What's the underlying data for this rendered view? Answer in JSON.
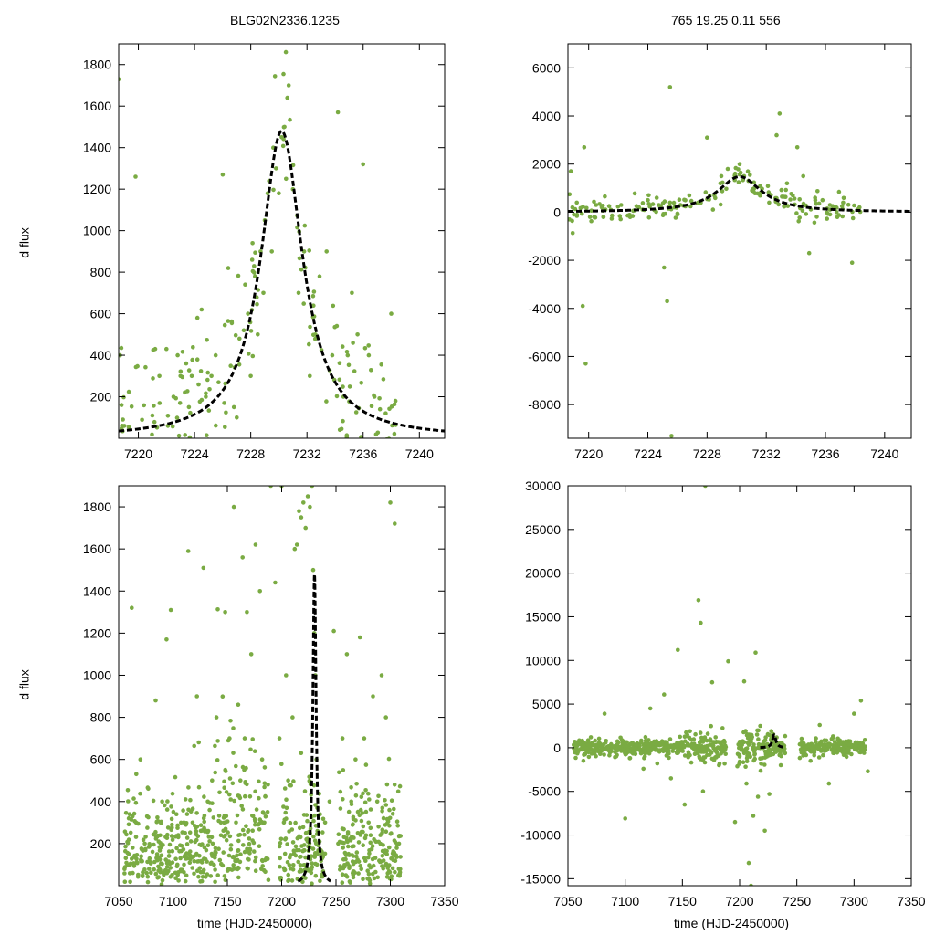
{
  "figure": {
    "title_left": "BLG02N2336.1235",
    "title_right": "765  19.25  0.11  556",
    "point_color": "#7aab43",
    "model_color": "#000000"
  },
  "chart_data": [
    {
      "id": "top-left",
      "type": "scatter",
      "title": "BLG02N2336.1235",
      "xlabel": "",
      "ylabel": "d flux",
      "xlim": [
        7218.6,
        7241.8
      ],
      "ylim": [
        0,
        1900
      ],
      "xticks": [
        7220,
        7224,
        7228,
        7232,
        7236,
        7240
      ],
      "yticks": [
        200,
        400,
        600,
        800,
        1000,
        1200,
        1400,
        1600,
        1800
      ],
      "series": [
        {
          "name": "photometry",
          "style": "points",
          "x": [
            7218.6,
            7218.7,
            7218.8,
            7218.9,
            7219.0,
            7219.8,
            7221.0,
            7221.2,
            7221.5,
            7222.0,
            7222.1,
            7222.5,
            7222.8,
            7223.0,
            7223.4,
            7223.6,
            7223.8,
            7224.2,
            7224.5,
            7224.8,
            7225.2,
            7225.5,
            7226.0,
            7226.4,
            7226.8,
            7227.0,
            7227.2,
            7227.5,
            7227.6,
            7227.8,
            7228.0,
            7228.1,
            7228.3,
            7228.5,
            7228.7,
            7228.9,
            7229.0,
            7229.2,
            7229.3,
            7229.5,
            7229.6,
            7229.8,
            7230.0,
            7230.2,
            7230.4,
            7230.5,
            7230.6,
            7230.7,
            7231.0,
            7231.4,
            7231.8,
            7232.2,
            7232.6,
            7232.9,
            7233.4,
            7233.8,
            7234.2,
            7234.6,
            7234.9,
            7235.2,
            7235.6,
            7236.0,
            7236.4,
            7236.8,
            7237.2,
            7237.6,
            7238.0,
            7238.3
          ],
          "y": [
            1730,
            400,
            160,
            90,
            60,
            1260,
            110,
            430,
            300,
            430,
            60,
            200,
            400,
            300,
            360,
            150,
            300,
            580,
            620,
            200,
            300,
            400,
            1270,
            820,
            150,
            100,
            480,
            520,
            740,
            600,
            300,
            860,
            780,
            500,
            900,
            700,
            1050,
            1180,
            1240,
            900,
            1400,
            1300,
            1180,
            1450,
            1500,
            1860,
            1640,
            1700,
            1200,
            700,
            900,
            300,
            500,
            780,
            900,
            400,
            1570,
            200,
            400,
            700,
            500,
            1320,
            400,
            200,
            140,
            120,
            600,
            180
          ]
        },
        {
          "name": "model",
          "style": "dashed-line",
          "model": "lorentzian",
          "peak": 1480,
          "t0": 7230.2,
          "width": 1.8,
          "baseline": 0
        }
      ]
    },
    {
      "id": "top-right",
      "type": "scatter",
      "title": "765  19.25  0.11  556",
      "xlabel": "",
      "ylabel": "",
      "xlim": [
        7218.6,
        7241.8
      ],
      "ylim": [
        -9400,
        7000
      ],
      "xticks": [
        7220,
        7224,
        7228,
        7232,
        7236,
        7240
      ],
      "yticks": [
        -8000,
        -6000,
        -4000,
        -2000,
        0,
        2000,
        4000,
        6000
      ],
      "series": [
        {
          "name": "photometry",
          "style": "points",
          "x": [
            7218.7,
            7218.8,
            7218.9,
            7219.0,
            7219.2,
            7219.6,
            7219.7,
            7219.8,
            7220.5,
            7221.0,
            7221.5,
            7222.2,
            7222.8,
            7223.4,
            7224.0,
            7224.6,
            7225.1,
            7225.3,
            7225.5,
            7225.6,
            7225.8,
            7226.2,
            7226.8,
            7227.4,
            7228.0,
            7228.5,
            7228.9,
            7229.4,
            7229.9,
            7230.2,
            7230.5,
            7230.8,
            7231.2,
            7231.6,
            7232.2,
            7232.7,
            7232.9,
            7233.4,
            7233.8,
            7234.1,
            7234.5,
            7234.9,
            7235.3,
            7235.8,
            7236.3,
            7236.8,
            7237.2,
            7237.8,
            7238.3
          ],
          "y": [
            -300,
            1700,
            200,
            -100,
            400,
            -3900,
            2700,
            -6300,
            300,
            -200,
            100,
            300,
            -200,
            200,
            500,
            600,
            -2300,
            -3700,
            5200,
            -9300,
            200,
            300,
            700,
            400,
            3100,
            700,
            1200,
            1800,
            1600,
            2000,
            1500,
            1300,
            1000,
            800,
            400,
            3200,
            4100,
            1200,
            700,
            2700,
            1500,
            -1700,
            600,
            500,
            300,
            -200,
            400,
            -2100,
            200
          ]
        },
        {
          "name": "model",
          "style": "dashed-line",
          "model": "lorentzian",
          "peak": 1480,
          "t0": 7230.2,
          "width": 1.8,
          "baseline": 0
        }
      ]
    },
    {
      "id": "bottom-left",
      "type": "scatter",
      "title": "",
      "xlabel": "time (HJD-2450000)",
      "ylabel": "d flux",
      "xlim": [
        7050,
        7350
      ],
      "ylim": [
        0,
        1900
      ],
      "xticks": [
        7050,
        7100,
        7150,
        7200,
        7250,
        7300,
        7350
      ],
      "yticks": [
        200,
        400,
        600,
        800,
        1000,
        1200,
        1400,
        1600,
        1800
      ],
      "series": [
        {
          "name": "photometry",
          "style": "points",
          "x": [
            7058,
            7062,
            7066,
            7070,
            7074,
            7078,
            7084,
            7090,
            7094,
            7098,
            7104,
            7110,
            7114,
            7118,
            7122,
            7128,
            7132,
            7136,
            7140,
            7144,
            7148,
            7152,
            7156,
            7158,
            7160,
            7162,
            7164,
            7166,
            7168,
            7172,
            7176,
            7180,
            7182,
            7184,
            7190,
            7194,
            7198,
            7200,
            7202,
            7204,
            7206,
            7210,
            7212,
            7214,
            7216,
            7218,
            7220,
            7222,
            7224,
            7226,
            7228,
            7229,
            7230,
            7231,
            7232,
            7240,
            7244,
            7248,
            7252,
            7256,
            7260,
            7264,
            7268,
            7272,
            7276,
            7280,
            7284,
            7288,
            7292,
            7296,
            7300,
            7304,
            7308
          ],
          "y": [
            100,
            1320,
            300,
            600,
            200,
            80,
            880,
            400,
            1170,
            1310,
            100,
            300,
            1590,
            300,
            900,
            1510,
            400,
            500,
            800,
            300,
            1300,
            700,
            1800,
            300,
            860,
            500,
            1560,
            700,
            1300,
            1100,
            1620,
            1400,
            600,
            300,
            1900,
            1440,
            700,
            1900,
            300,
            1000,
            500,
            800,
            1600,
            1620,
            1780,
            1750,
            1820,
            1700,
            1850,
            1800,
            1900,
            1500,
            1200,
            1000,
            600,
            300,
            400,
            1210,
            200,
            700,
            1100,
            400,
            600,
            1180,
            700,
            300,
            900,
            400,
            1000,
            800,
            1820,
            1720,
            200
          ]
        },
        {
          "name": "model",
          "style": "dashed-line",
          "model": "lorentzian",
          "peak": 1480,
          "t0": 7230.2,
          "width": 1.8,
          "baseline": 0
        }
      ]
    },
    {
      "id": "bottom-right",
      "type": "scatter",
      "title": "",
      "xlabel": "time (HJD-2450000)",
      "ylabel": "",
      "xlim": [
        7050,
        7350
      ],
      "ylim": [
        -15800,
        30000
      ],
      "xticks": [
        7050,
        7100,
        7150,
        7200,
        7250,
        7300,
        7350
      ],
      "yticks": [
        -15000,
        -10000,
        -5000,
        0,
        5000,
        10000,
        15000,
        20000,
        25000,
        30000
      ],
      "series": [
        {
          "name": "photometry",
          "style": "points",
          "x": [
            7058,
            7064,
            7070,
            7076,
            7082,
            7088,
            7094,
            7100,
            7104,
            7110,
            7116,
            7122,
            7128,
            7134,
            7140,
            7146,
            7152,
            7158,
            7164,
            7166,
            7168,
            7170,
            7176,
            7182,
            7190,
            7196,
            7200,
            7204,
            7206,
            7208,
            7210,
            7212,
            7214,
            7216,
            7218,
            7222,
            7226,
            7230,
            7236,
            7256,
            7262,
            7270,
            7278,
            7286,
            7294,
            7300,
            7306,
            7312
          ],
          "y": [
            200,
            -800,
            1200,
            -300,
            3900,
            -400,
            600,
            -8100,
            -1200,
            300,
            -2400,
            4500,
            -1800,
            6100,
            -3500,
            11200,
            -6500,
            900,
            16900,
            14300,
            -5000,
            30000,
            7500,
            -2000,
            9900,
            -8500,
            -1000,
            7600,
            -4100,
            -13200,
            -15800,
            -7800,
            10900,
            -5600,
            2500,
            -9500,
            -5300,
            1100,
            -2000,
            500,
            -1500,
            2600,
            -4100,
            900,
            -600,
            3900,
            5400,
            -2700
          ]
        },
        {
          "name": "model",
          "style": "dashed-line",
          "model": "lorentzian",
          "peak": 1480,
          "t0": 7230.2,
          "width": 1.8,
          "baseline": 0
        }
      ]
    }
  ]
}
